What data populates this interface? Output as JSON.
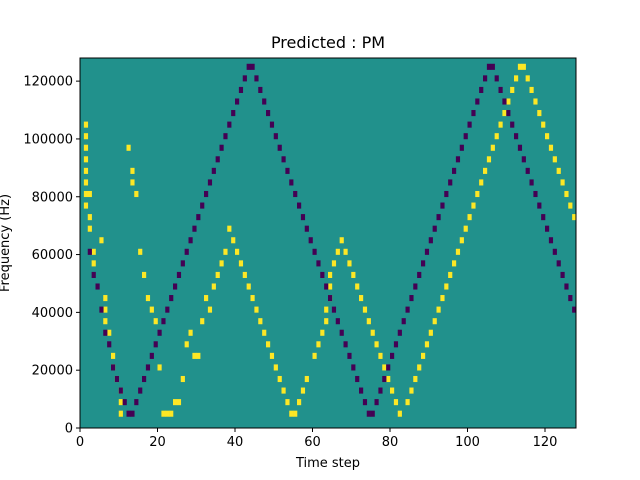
{
  "chart_data": {
    "type": "heatmap",
    "title": "Predicted : PM",
    "xlabel": "Time step",
    "ylabel": "Frequency (Hz)",
    "xlim": [
      0,
      128
    ],
    "ylim": [
      0,
      128000
    ],
    "x_ticks": [
      0,
      20,
      40,
      60,
      80,
      100,
      120
    ],
    "y_ticks": [
      0,
      20000,
      40000,
      60000,
      80000,
      100000,
      120000
    ],
    "x_tick_labels": [
      "0",
      "20",
      "40",
      "60",
      "80",
      "100",
      "120"
    ],
    "y_tick_labels": [
      "0",
      "20000",
      "40000",
      "60000",
      "80000",
      "100000",
      "120000"
    ],
    "time_steps": 128,
    "frequency_bins": 64,
    "bin_hz": 2000,
    "grid": false,
    "legend": "none",
    "colors": {
      "background": "#21918c",
      "high": "#fde725",
      "low": "#440154"
    },
    "high_cells": [
      [
        1,
        52
      ],
      [
        1,
        50
      ],
      [
        1,
        48
      ],
      [
        1,
        46
      ],
      [
        1,
        44
      ],
      [
        1,
        42
      ],
      [
        1,
        40
      ],
      [
        1,
        38
      ],
      [
        2,
        40
      ],
      [
        2,
        36
      ],
      [
        2,
        34
      ],
      [
        3,
        30
      ],
      [
        3,
        28
      ],
      [
        5,
        32
      ],
      [
        6,
        22
      ],
      [
        6,
        20
      ],
      [
        6,
        18
      ],
      [
        7,
        16
      ],
      [
        8,
        12
      ],
      [
        8,
        10
      ],
      [
        9,
        8
      ],
      [
        10,
        6
      ],
      [
        10,
        4
      ],
      [
        10,
        2
      ],
      [
        12,
        48
      ],
      [
        13,
        44
      ],
      [
        13,
        42
      ],
      [
        14,
        40
      ],
      [
        15,
        30
      ],
      [
        16,
        26
      ],
      [
        17,
        22
      ],
      [
        18,
        20
      ],
      [
        19,
        18
      ],
      [
        20,
        10
      ],
      [
        21,
        2
      ],
      [
        22,
        2
      ],
      [
        23,
        2
      ],
      [
        24,
        4
      ],
      [
        25,
        4
      ],
      [
        26,
        8
      ],
      [
        27,
        14
      ],
      [
        28,
        16
      ],
      [
        29,
        12
      ],
      [
        30,
        12
      ],
      [
        31,
        18
      ],
      [
        32,
        22
      ],
      [
        33,
        20
      ],
      [
        34,
        24
      ],
      [
        35,
        26
      ],
      [
        36,
        28
      ],
      [
        37,
        30
      ],
      [
        38,
        34
      ],
      [
        39,
        32
      ],
      [
        40,
        30
      ],
      [
        41,
        28
      ],
      [
        42,
        26
      ],
      [
        43,
        24
      ],
      [
        44,
        22
      ],
      [
        45,
        20
      ],
      [
        46,
        18
      ],
      [
        47,
        16
      ],
      [
        48,
        14
      ],
      [
        49,
        12
      ],
      [
        50,
        10
      ],
      [
        51,
        8
      ],
      [
        52,
        6
      ],
      [
        53,
        4
      ],
      [
        54,
        2
      ],
      [
        55,
        2
      ],
      [
        56,
        4
      ],
      [
        57,
        6
      ],
      [
        58,
        8
      ],
      [
        60,
        12
      ],
      [
        61,
        14
      ],
      [
        62,
        16
      ],
      [
        63,
        18
      ],
      [
        63,
        20
      ],
      [
        64,
        22
      ],
      [
        64,
        24
      ],
      [
        64,
        26
      ],
      [
        65,
        28
      ],
      [
        66,
        30
      ],
      [
        67,
        32
      ],
      [
        68,
        30
      ],
      [
        69,
        28
      ],
      [
        70,
        26
      ],
      [
        71,
        24
      ],
      [
        72,
        22
      ],
      [
        73,
        20
      ],
      [
        74,
        18
      ],
      [
        75,
        16
      ],
      [
        76,
        14
      ],
      [
        77,
        12
      ],
      [
        78,
        10
      ],
      [
        79,
        8
      ],
      [
        80,
        6
      ],
      [
        81,
        4
      ],
      [
        82,
        2
      ],
      [
        84,
        4
      ],
      [
        85,
        6
      ],
      [
        86,
        8
      ],
      [
        87,
        10
      ],
      [
        88,
        12
      ],
      [
        89,
        14
      ],
      [
        90,
        16
      ],
      [
        91,
        18
      ],
      [
        92,
        20
      ],
      [
        93,
        22
      ],
      [
        94,
        24
      ],
      [
        95,
        26
      ],
      [
        96,
        28
      ],
      [
        97,
        30
      ],
      [
        98,
        32
      ],
      [
        99,
        34
      ],
      [
        100,
        36
      ],
      [
        101,
        38
      ],
      [
        102,
        40
      ],
      [
        103,
        42
      ],
      [
        104,
        44
      ],
      [
        105,
        46
      ],
      [
        106,
        48
      ],
      [
        107,
        50
      ],
      [
        108,
        52
      ],
      [
        109,
        54
      ],
      [
        110,
        56
      ],
      [
        111,
        58
      ],
      [
        112,
        60
      ],
      [
        113,
        62
      ],
      [
        114,
        62
      ],
      [
        115,
        60
      ],
      [
        116,
        58
      ],
      [
        117,
        56
      ],
      [
        118,
        54
      ],
      [
        119,
        52
      ],
      [
        120,
        50
      ],
      [
        121,
        48
      ],
      [
        122,
        46
      ],
      [
        123,
        44
      ],
      [
        124,
        42
      ],
      [
        125,
        40
      ],
      [
        126,
        38
      ],
      [
        127,
        36
      ]
    ],
    "low_cells": [
      [
        2,
        30
      ],
      [
        3,
        26
      ],
      [
        4,
        24
      ],
      [
        5,
        20
      ],
      [
        6,
        16
      ],
      [
        7,
        14
      ],
      [
        8,
        10
      ],
      [
        9,
        8
      ],
      [
        10,
        6
      ],
      [
        11,
        4
      ],
      [
        12,
        2
      ],
      [
        13,
        2
      ],
      [
        14,
        4
      ],
      [
        15,
        6
      ],
      [
        16,
        8
      ],
      [
        17,
        10
      ],
      [
        18,
        12
      ],
      [
        19,
        14
      ],
      [
        20,
        16
      ],
      [
        21,
        18
      ],
      [
        22,
        20
      ],
      [
        23,
        22
      ],
      [
        24,
        24
      ],
      [
        25,
        26
      ],
      [
        26,
        28
      ],
      [
        27,
        30
      ],
      [
        28,
        32
      ],
      [
        29,
        34
      ],
      [
        30,
        36
      ],
      [
        31,
        38
      ],
      [
        32,
        40
      ],
      [
        33,
        42
      ],
      [
        34,
        44
      ],
      [
        35,
        46
      ],
      [
        36,
        48
      ],
      [
        37,
        50
      ],
      [
        38,
        52
      ],
      [
        39,
        54
      ],
      [
        40,
        56
      ],
      [
        41,
        58
      ],
      [
        42,
        60
      ],
      [
        43,
        62
      ],
      [
        44,
        62
      ],
      [
        45,
        60
      ],
      [
        46,
        58
      ],
      [
        47,
        56
      ],
      [
        48,
        54
      ],
      [
        49,
        52
      ],
      [
        50,
        50
      ],
      [
        51,
        48
      ],
      [
        52,
        46
      ],
      [
        53,
        44
      ],
      [
        54,
        42
      ],
      [
        55,
        40
      ],
      [
        56,
        38
      ],
      [
        57,
        36
      ],
      [
        58,
        34
      ],
      [
        59,
        32
      ],
      [
        60,
        30
      ],
      [
        61,
        28
      ],
      [
        62,
        26
      ],
      [
        63,
        24
      ],
      [
        64,
        22
      ],
      [
        65,
        20
      ],
      [
        66,
        18
      ],
      [
        67,
        16
      ],
      [
        68,
        14
      ],
      [
        69,
        12
      ],
      [
        70,
        10
      ],
      [
        71,
        8
      ],
      [
        72,
        6
      ],
      [
        73,
        4
      ],
      [
        74,
        2
      ],
      [
        75,
        2
      ],
      [
        76,
        4
      ],
      [
        77,
        6
      ],
      [
        78,
        8
      ],
      [
        79,
        10
      ],
      [
        80,
        12
      ],
      [
        81,
        14
      ],
      [
        82,
        16
      ],
      [
        83,
        18
      ],
      [
        84,
        20
      ],
      [
        85,
        22
      ],
      [
        86,
        24
      ],
      [
        87,
        26
      ],
      [
        88,
        28
      ],
      [
        89,
        30
      ],
      [
        90,
        32
      ],
      [
        91,
        34
      ],
      [
        92,
        36
      ],
      [
        93,
        38
      ],
      [
        94,
        40
      ],
      [
        95,
        42
      ],
      [
        96,
        44
      ],
      [
        97,
        46
      ],
      [
        98,
        48
      ],
      [
        99,
        50
      ],
      [
        100,
        52
      ],
      [
        101,
        54
      ],
      [
        102,
        56
      ],
      [
        103,
        58
      ],
      [
        104,
        60
      ],
      [
        105,
        62
      ],
      [
        106,
        62
      ],
      [
        107,
        60
      ],
      [
        108,
        58
      ],
      [
        109,
        56
      ],
      [
        110,
        54
      ],
      [
        111,
        52
      ],
      [
        112,
        50
      ],
      [
        113,
        48
      ],
      [
        114,
        46
      ],
      [
        115,
        44
      ],
      [
        116,
        42
      ],
      [
        117,
        40
      ],
      [
        118,
        38
      ],
      [
        119,
        36
      ],
      [
        120,
        34
      ],
      [
        121,
        32
      ],
      [
        122,
        30
      ],
      [
        123,
        28
      ],
      [
        124,
        26
      ],
      [
        125,
        24
      ],
      [
        126,
        22
      ],
      [
        127,
        20
      ]
    ]
  }
}
